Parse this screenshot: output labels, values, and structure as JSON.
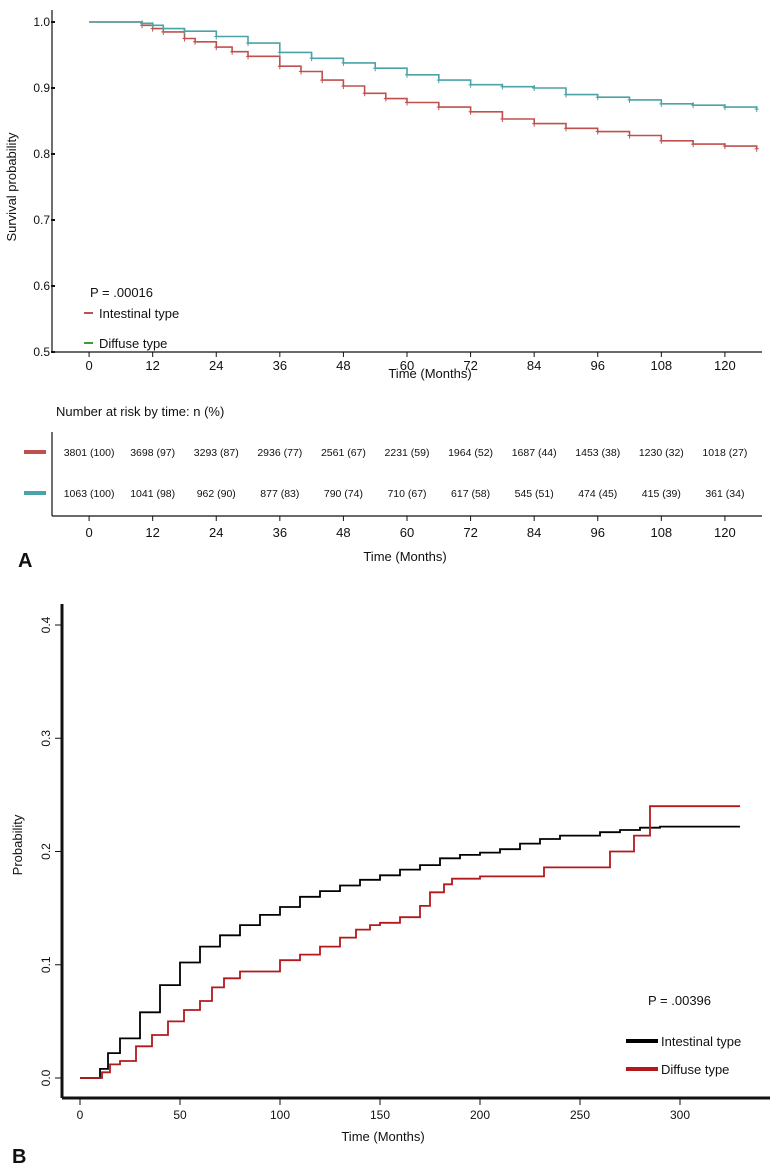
{
  "colors": {
    "intestinal_a": "#c0504d",
    "diffuse_a": "#4aa3a6",
    "legend_diffuse_swatch": "#3a9d3a",
    "intestinal_b": "#000000",
    "diffuse_b": "#b3191c"
  },
  "chart_data": [
    {
      "panel": "A",
      "type": "line",
      "subtype": "kaplan-meier",
      "xlabel": "Time (Months)",
      "ylabel": "Survival probability",
      "xlim": [
        -7,
        127
      ],
      "ylim": [
        0.5,
        1.0
      ],
      "xticks": [
        0,
        12,
        24,
        36,
        48,
        60,
        72,
        84,
        96,
        108,
        120
      ],
      "yticks": [
        0.5,
        0.6,
        0.7,
        0.8,
        0.9,
        1.0
      ],
      "ytick_labels": [
        "0.5",
        "0.6",
        "0.7",
        "0.8",
        "0.9",
        "1.0"
      ],
      "pvalue": "P = .00016",
      "legend": [
        "Intestinal type",
        "Diffuse type"
      ],
      "legend_placement": "bottom-left",
      "series": [
        {
          "name": "Intestinal type",
          "color": "#c0504d",
          "x": [
            0,
            8,
            10,
            12,
            14,
            18,
            20,
            24,
            27,
            30,
            36,
            40,
            44,
            48,
            52,
            56,
            60,
            66,
            72,
            78,
            84,
            90,
            96,
            102,
            108,
            114,
            120,
            126
          ],
          "y": [
            1.0,
            1.0,
            0.995,
            0.99,
            0.985,
            0.975,
            0.97,
            0.962,
            0.955,
            0.948,
            0.933,
            0.925,
            0.912,
            0.903,
            0.892,
            0.884,
            0.878,
            0.871,
            0.864,
            0.853,
            0.846,
            0.839,
            0.834,
            0.828,
            0.82,
            0.815,
            0.812,
            0.808
          ]
        },
        {
          "name": "Diffuse type",
          "color": "#4aa3a6",
          "x": [
            0,
            8,
            10,
            12,
            14,
            18,
            24,
            30,
            36,
            42,
            48,
            54,
            60,
            66,
            72,
            78,
            84,
            90,
            96,
            102,
            108,
            114,
            120,
            126
          ],
          "y": [
            1.0,
            1.0,
            0.998,
            0.995,
            0.99,
            0.986,
            0.978,
            0.968,
            0.954,
            0.945,
            0.938,
            0.93,
            0.92,
            0.912,
            0.905,
            0.902,
            0.9,
            0.89,
            0.886,
            0.882,
            0.876,
            0.874,
            0.871,
            0.868
          ]
        }
      ]
    },
    {
      "panel": "A-risk-table",
      "type": "table",
      "title": "Number at risk by time: n (%)",
      "xlabel": "Time (Months)",
      "xticks": [
        0,
        12,
        24,
        36,
        48,
        60,
        72,
        84,
        96,
        108,
        120
      ],
      "rows": [
        {
          "name": "Intestinal type",
          "color": "#c0504d",
          "values": [
            "3801 (100)",
            "3698 (97)",
            "3293 (87)",
            "2936 (77)",
            "2561 (67)",
            "2231 (59)",
            "1964 (52)",
            "1687 (44)",
            "1453 (38)",
            "1230 (32)",
            "1018 (27)"
          ]
        },
        {
          "name": "Diffuse type",
          "color": "#4aa3a6",
          "values": [
            "1063 (100)",
            "1041 (98)",
            "962 (90)",
            "877 (83)",
            "790 (74)",
            "710 (67)",
            "617 (58)",
            "545 (51)",
            "474 (45)",
            "415 (39)",
            "361 (34)"
          ]
        }
      ]
    },
    {
      "panel": "B",
      "type": "line",
      "subtype": "cumulative-incidence",
      "xlabel": "Time (Months)",
      "ylabel": "Probability",
      "xlim": [
        -9,
        345
      ],
      "ylim": [
        -0.01,
        0.41
      ],
      "xticks": [
        0,
        50,
        100,
        150,
        200,
        250,
        300
      ],
      "yticks": [
        0.0,
        0.1,
        0.2,
        0.3,
        0.4
      ],
      "ytick_labels": [
        "0.0",
        "0.1",
        "0.2",
        "0.3",
        "0.4"
      ],
      "pvalue": "P = .00396",
      "legend": [
        "Intestinal type",
        "Diffuse type"
      ],
      "legend_placement": "bottom-right",
      "series": [
        {
          "name": "Intestinal type",
          "color": "#000000",
          "x": [
            0,
            8,
            10,
            14,
            20,
            30,
            40,
            50,
            60,
            70,
            80,
            90,
            100,
            110,
            120,
            130,
            140,
            150,
            160,
            170,
            180,
            190,
            200,
            210,
            220,
            230,
            240,
            260,
            270,
            280,
            290,
            330
          ],
          "y": [
            0.0,
            0.0,
            0.008,
            0.022,
            0.035,
            0.058,
            0.082,
            0.102,
            0.116,
            0.126,
            0.135,
            0.144,
            0.151,
            0.16,
            0.165,
            0.17,
            0.175,
            0.179,
            0.184,
            0.188,
            0.194,
            0.197,
            0.199,
            0.202,
            0.207,
            0.211,
            0.214,
            0.217,
            0.219,
            0.221,
            0.222,
            0.222
          ]
        },
        {
          "name": "Diffuse type",
          "color": "#b3191c",
          "x": [
            0,
            9,
            11,
            15,
            20,
            28,
            36,
            44,
            52,
            60,
            66,
            72,
            80,
            90,
            100,
            110,
            120,
            130,
            138,
            145,
            150,
            160,
            170,
            175,
            182,
            186,
            200,
            220,
            232,
            250,
            265,
            277,
            285,
            290,
            330
          ],
          "y": [
            0.0,
            0.0,
            0.005,
            0.012,
            0.015,
            0.028,
            0.038,
            0.05,
            0.06,
            0.068,
            0.08,
            0.088,
            0.094,
            0.094,
            0.104,
            0.109,
            0.116,
            0.124,
            0.131,
            0.135,
            0.137,
            0.142,
            0.152,
            0.164,
            0.171,
            0.176,
            0.178,
            0.178,
            0.186,
            0.186,
            0.2,
            0.214,
            0.24,
            0.24,
            0.24
          ]
        }
      ]
    }
  ],
  "panel_labels": {
    "a": "A",
    "b": "B"
  }
}
